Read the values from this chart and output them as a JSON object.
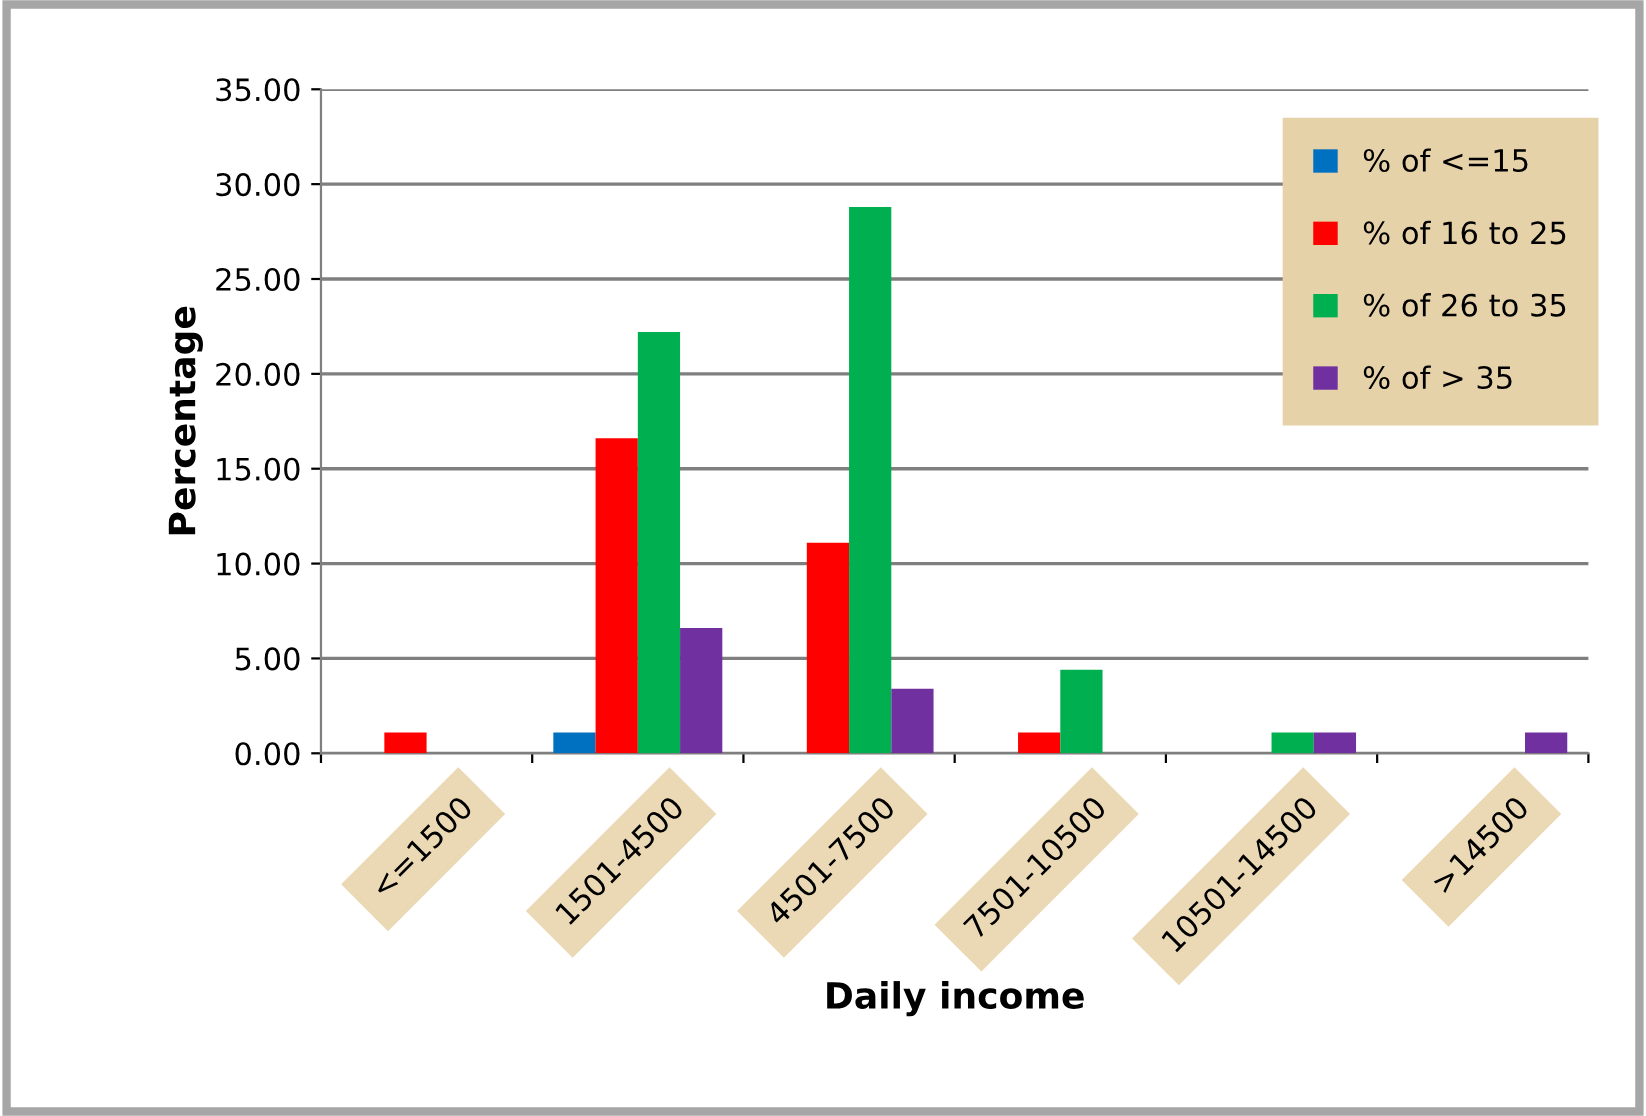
{
  "chart_data": {
    "type": "bar",
    "xlabel": "Daily income",
    "ylabel": "Percentage",
    "categories": [
      "<=1500",
      "1501-4500",
      "4501-7500",
      "7501-10500",
      "10501-14500",
      ">14500"
    ],
    "series": [
      {
        "name": "% of <=15",
        "color": "#0070c0",
        "values": [
          0,
          1.1,
          0,
          0,
          0,
          0
        ]
      },
      {
        "name": "% of 16 to 25",
        "color": "#ff0000",
        "values": [
          1.1,
          16.6,
          11.1,
          1.1,
          0,
          0
        ]
      },
      {
        "name": "% of 26 to 35",
        "color": "#00b050",
        "values": [
          0,
          22.2,
          28.8,
          4.4,
          1.1,
          0
        ]
      },
      {
        "name": "% of > 35",
        "color": "#7030a0",
        "values": [
          0,
          6.6,
          3.4,
          0,
          1.1,
          1.1
        ]
      }
    ],
    "ylim": [
      0,
      35
    ],
    "yticks": [
      {
        "value": 0,
        "label": "0.00"
      },
      {
        "value": 5,
        "label": "5.00"
      },
      {
        "value": 10,
        "label": "10.00"
      },
      {
        "value": 15,
        "label": "15.00"
      },
      {
        "value": 20,
        "label": "20.00"
      },
      {
        "value": 25,
        "label": "25.00"
      },
      {
        "value": 30,
        "label": "30.00"
      },
      {
        "value": 35,
        "label": "35.00"
      }
    ],
    "grid": "y",
    "legend": "top right"
  }
}
